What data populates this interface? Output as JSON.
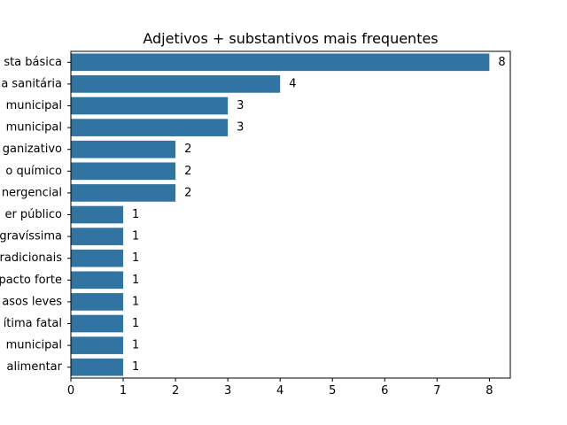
{
  "chart_data": {
    "type": "bar",
    "orientation": "horizontal",
    "title": "Adjetivos + substantivos mais frequentes",
    "xlabel": "",
    "ylabel": "",
    "xlim": [
      0,
      8.4
    ],
    "xticks": [
      0,
      1,
      2,
      3,
      4,
      5,
      6,
      7,
      8
    ],
    "grid": false,
    "bar_color": "#3274a1",
    "categories": [
      "sta básica",
      "a sanitária",
      " municipal",
      " municipal",
      "ganizativo",
      "o químico",
      "nergencial",
      "er público",
      "gravíssima",
      "radicionais",
      "pacto forte",
      "asos leves",
      "ítima fatal",
      " municipal",
      " alimentar"
    ],
    "values": [
      8,
      4,
      3,
      3,
      2,
      2,
      2,
      1,
      1,
      1,
      1,
      1,
      1,
      1,
      1
    ]
  }
}
